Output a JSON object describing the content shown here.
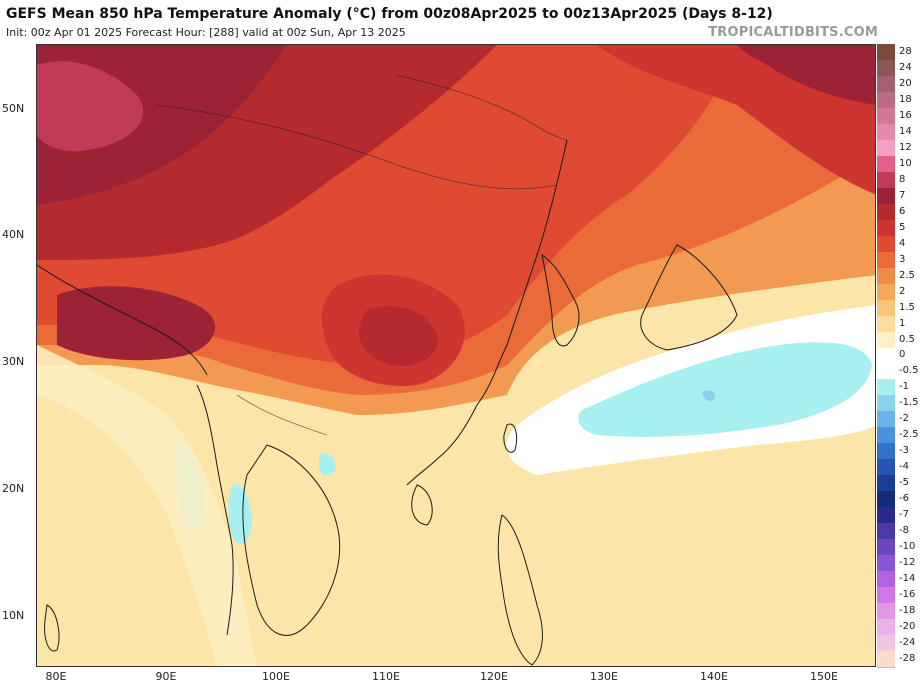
{
  "header": {
    "title": "GEFS Mean 850 hPa Temperature Anomaly (°C) from 00z08Apr2025 to 00z13Apr2025 (Days 8-12)",
    "subtitle": "Init: 00z Apr 01 2025   Forecast Hour: [288]   valid at 00z Sun, Apr 13 2025",
    "credit": "TROPICALTIDBITS.COM"
  },
  "axes": {
    "lat_labels": [
      "50N",
      "40N",
      "30N",
      "20N",
      "10N"
    ],
    "lon_labels": [
      "80E",
      "90E",
      "100E",
      "110E",
      "120E",
      "130E",
      "140E",
      "150E"
    ]
  },
  "colorbar": {
    "levels": [
      {
        "label": "28",
        "color": "#7a4a3a"
      },
      {
        "label": "24",
        "color": "#8e5656"
      },
      {
        "label": "20",
        "color": "#a46070"
      },
      {
        "label": "18",
        "color": "#bb6c86"
      },
      {
        "label": "16",
        "color": "#d07898"
      },
      {
        "label": "14",
        "color": "#e58aac"
      },
      {
        "label": "12",
        "color": "#f4a0c4"
      },
      {
        "label": "10",
        "color": "#e45e8a"
      },
      {
        "label": "8",
        "color": "#c23a5a"
      },
      {
        "label": "7",
        "color": "#9c2236"
      },
      {
        "label": "6",
        "color": "#b52a2e"
      },
      {
        "label": "5",
        "color": "#cc3530"
      },
      {
        "label": "4",
        "color": "#de4a32"
      },
      {
        "label": "3",
        "color": "#ea6a3a"
      },
      {
        "label": "2.5",
        "color": "#f08a48"
      },
      {
        "label": "2",
        "color": "#f5a85c"
      },
      {
        "label": "1.5",
        "color": "#f8c47a"
      },
      {
        "label": "1",
        "color": "#fbdc9c"
      },
      {
        "label": "0.5",
        "color": "#fdf0c4"
      },
      {
        "label": "0",
        "color": "#ffffff"
      },
      {
        "label": "-0.5",
        "color": "#ffffff"
      },
      {
        "label": "-1",
        "color": "#a8f0f0"
      },
      {
        "label": "-1.5",
        "color": "#88d4ee"
      },
      {
        "label": "-2",
        "color": "#6ab4ea"
      },
      {
        "label": "-2.5",
        "color": "#4a92e0"
      },
      {
        "label": "-3",
        "color": "#3270cc"
      },
      {
        "label": "-4",
        "color": "#2454b4"
      },
      {
        "label": "-5",
        "color": "#1a3e96"
      },
      {
        "label": "-6",
        "color": "#142c78"
      },
      {
        "label": "-7",
        "color": "#2a2a8a"
      },
      {
        "label": "-8",
        "color": "#4a3aa8"
      },
      {
        "label": "-10",
        "color": "#6a48c4"
      },
      {
        "label": "-12",
        "color": "#8a56d8"
      },
      {
        "label": "-14",
        "color": "#b064e4"
      },
      {
        "label": "-16",
        "color": "#d078e6"
      },
      {
        "label": "-18",
        "color": "#e296e6"
      },
      {
        "label": "-20",
        "color": "#eab2e6"
      },
      {
        "label": "-24",
        "color": "#f2c6e2"
      },
      {
        "label": "-28",
        "color": "#f8dcc8"
      }
    ]
  }
}
